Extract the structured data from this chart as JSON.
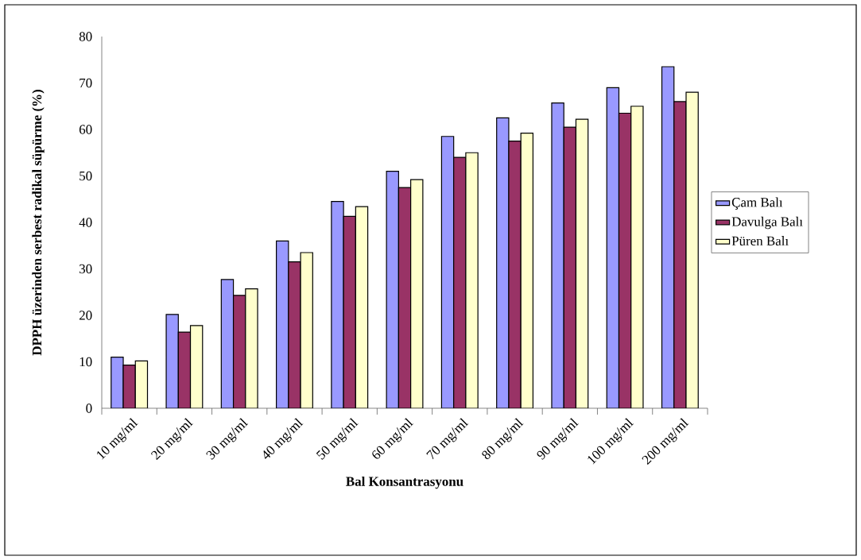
{
  "chart_data": {
    "type": "bar",
    "xlabel": "Bal Konsantrasyonu",
    "ylabel": "DPPH üzerinden serbest radikal süpürme (%)",
    "categories": [
      "10 mg/ml",
      "20 mg/ml",
      "30 mg/ml",
      "40 mg/ml",
      "50 mg/ml",
      "60 mg/ml",
      "70 mg/ml",
      "80 mg/ml",
      "90 mg/ml",
      "100 mg/ml",
      "200 mg/ml"
    ],
    "series": [
      {
        "name": "Çam Balı",
        "color": "#9999ff",
        "values": [
          11,
          20.2,
          27.7,
          36,
          44.5,
          51,
          58.5,
          62.5,
          65.7,
          69,
          73.5
        ]
      },
      {
        "name": "Davulga Balı",
        "color": "#993366",
        "values": [
          9.3,
          16.4,
          24.3,
          31.5,
          41.3,
          47.5,
          54,
          57.5,
          60.5,
          63.5,
          66
        ]
      },
      {
        "name": "Püren Balı",
        "color": "#ffffcc",
        "values": [
          10.2,
          17.8,
          25.7,
          33.5,
          43.4,
          49.2,
          55,
          59.2,
          62.2,
          65,
          68
        ]
      }
    ],
    "ylim": [
      0,
      80
    ],
    "yticks": [
      0,
      10,
      20,
      30,
      40,
      50,
      60,
      70,
      80
    ],
    "grid": false,
    "legend": "right"
  }
}
